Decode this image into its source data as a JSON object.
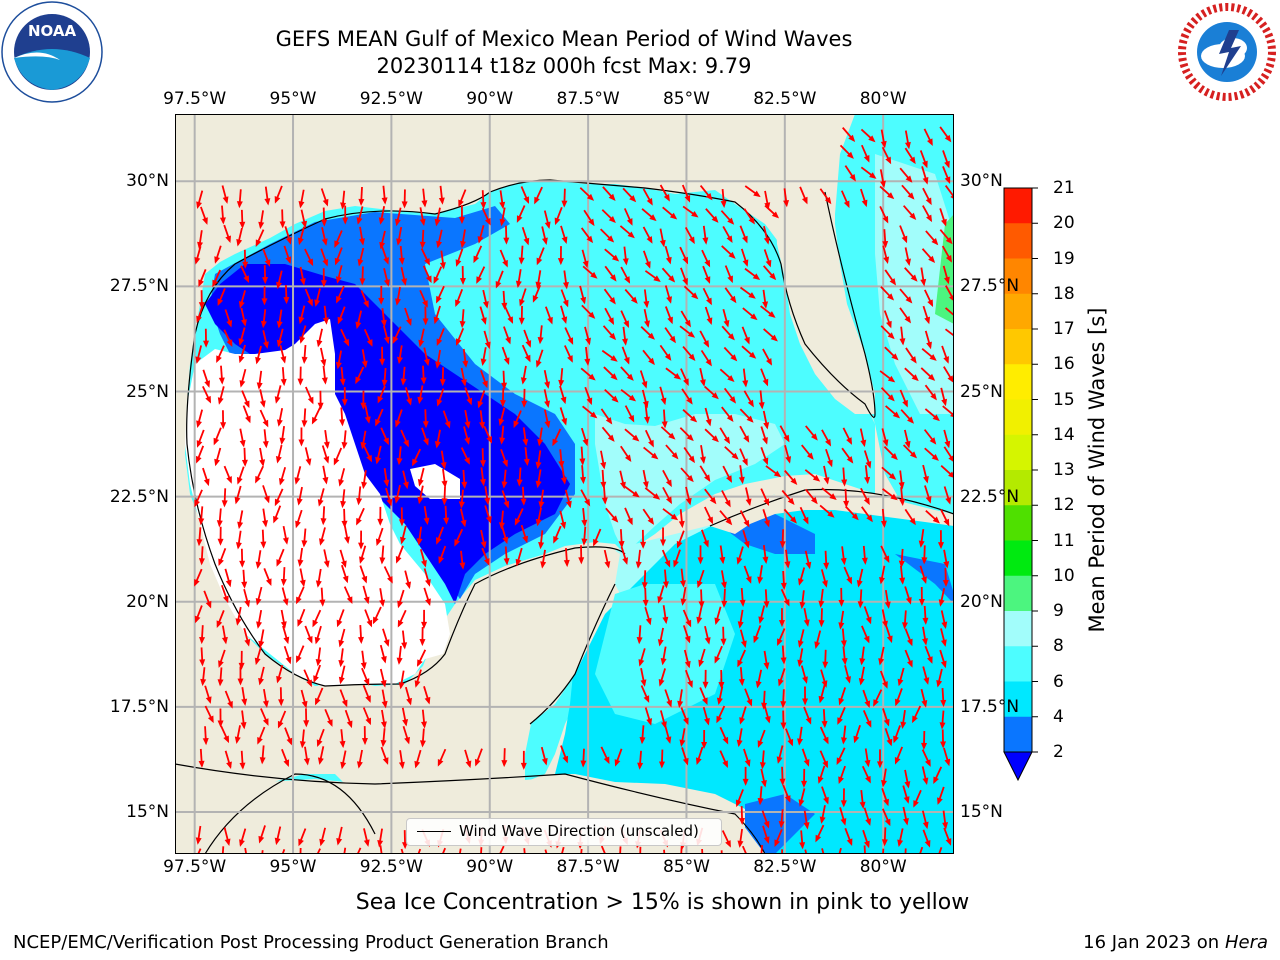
{
  "title": {
    "line1": "GEFS MEAN Gulf of Mexico Mean Period of Wind Waves",
    "line2": "20230114 t18z 000h fcst   Max: 9.79"
  },
  "logos": {
    "left": "noaa-logo",
    "right": "nws-logo"
  },
  "map": {
    "lon_ticks": [
      "97.5°W",
      "95°W",
      "92.5°W",
      "90°W",
      "87.5°W",
      "85°W",
      "82.5°W",
      "80°W"
    ],
    "lat_ticks": [
      "30°N",
      "27.5°N",
      "25°N",
      "22.5°N",
      "20°N",
      "17.5°N",
      "15°N"
    ],
    "extent": {
      "lon": [
        -98,
        -78.2
      ],
      "lat": [
        14,
        31.6
      ]
    },
    "gridlines": true,
    "land_color": "#efecdc",
    "arrow_color": "#ff0000",
    "legend_label": "Wind Wave Direction (unscaled)"
  },
  "colorbar": {
    "label": "Mean Period of Wind Waves [s]",
    "ticks": [
      "2",
      "4",
      "6",
      "8",
      "9",
      "10",
      "11",
      "12",
      "13",
      "14",
      "15",
      "16",
      "17",
      "18",
      "19",
      "20",
      "21"
    ],
    "colors": [
      "#0a76ff",
      "#00e8ff",
      "#4dfdff",
      "#a2fdfb",
      "#4cf57f",
      "#00ea10",
      "#4fe000",
      "#b4ea00",
      "#d5f500",
      "#f1f000",
      "#ffed00",
      "#ffc800",
      "#ffa800",
      "#ff8600",
      "#ff5a00",
      "#ff1a00"
    ],
    "under_color": "#0000ff"
  },
  "subtitle": "Sea Ice Concentration > 15% is shown in pink to yellow",
  "footer": {
    "left": "NCEP/EMC/Verification Post Processing Product Generation Branch",
    "right_date": "16 Jan 2023 on",
    "right_host": "Hera"
  }
}
